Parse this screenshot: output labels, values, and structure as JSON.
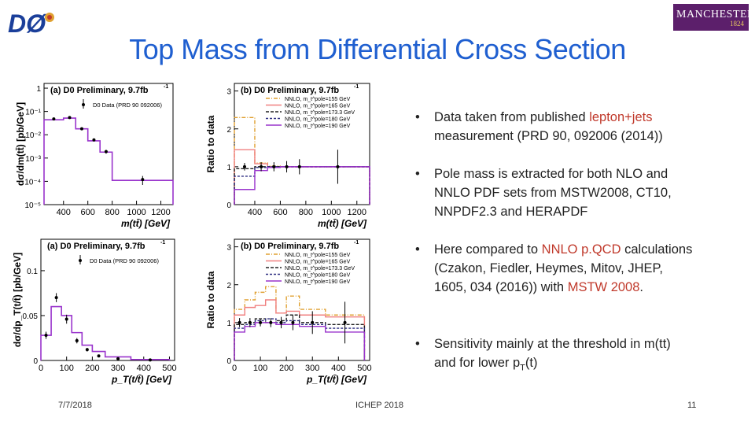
{
  "slide": {
    "title": "Top Mass from Differential Cross Section",
    "footer_date": "7/7/2018",
    "footer_conf": "ICHEP 2018",
    "page_number": "11"
  },
  "logos": {
    "d0": "DØ",
    "manchester_name": "MANCHESTER",
    "manchester_year": "1824"
  },
  "bullets": [
    {
      "parts": [
        "Data taken from published ",
        "lepton+jets",
        " measurement (PRD 90, 092006 (2014))"
      ]
    },
    {
      "parts": [
        "Pole mass is extracted for both NLO and NNLO PDF sets from MSTW2008, CT10, NNPDF2.3 and HERAPDF"
      ]
    },
    {
      "parts": [
        "Here compared to ",
        "NNLO p.QCD",
        " calculations (Czakon, Fiedler, Heymes, Mitov, JHEP, 1605, 034 (2016)) with ",
        "MSTW 2008",
        "."
      ]
    },
    {
      "parts": [
        "Sensitivity mainly at the threshold in m(tt) and for lower p",
        "T",
        "(t)"
      ]
    }
  ],
  "colors": {
    "title": "#1f5fd0",
    "highlight": "#c0392b",
    "purple": "#9933cc",
    "orange": "#e0a030",
    "pink": "#f08080",
    "navy": "#2c2c80"
  },
  "chart_data": [
    {
      "type": "bar",
      "id": "mtt-xsec",
      "title": "(a)  D0 Preliminary, 9.7fb",
      "title_sup": "-1",
      "xlabel": "m(tt̄) [GeV]",
      "ylabel": "dσ/dm(tt̄) [pb/GeV]",
      "log_y": true,
      "xlim": [
        240,
        1300
      ],
      "ylim": [
        1e-05,
        1.6
      ],
      "x_ticks": [
        "400",
        "600",
        "800",
        "1000",
        "1200"
      ],
      "y_ticks": [
        "10⁻⁵",
        "10⁻⁴",
        "10⁻³",
        "10⁻²",
        "10⁻¹",
        "1"
      ],
      "legend": "D0 Data (PRD 90 092006)",
      "edges": [
        240,
        400,
        500,
        600,
        700,
        800,
        1300
      ],
      "series": [
        {
          "name": "theory",
          "values": [
            0.044,
            0.052,
            0.018,
            0.0055,
            0.0018,
            0.00011
          ]
        },
        {
          "name": "data",
          "x": [
            320,
            450,
            550,
            650,
            750,
            1050
          ],
          "values": [
            0.048,
            0.055,
            0.018,
            0.006,
            0.0019,
            0.00012
          ],
          "errors": [
            0.006,
            0.006,
            0.002,
            0.0008,
            0.00035,
            5e-05
          ]
        }
      ]
    },
    {
      "type": "line",
      "id": "mtt-ratio",
      "title": "(b)  D0 Preliminary, 9.7fb",
      "title_sup": "-1",
      "xlabel": "m(tt̄) [GeV]",
      "ylabel": "Ratio to data",
      "xlim": [
        240,
        1300
      ],
      "ylim": [
        0,
        3.2
      ],
      "x_ticks": [
        "400",
        "600",
        "800",
        "1000",
        "1200"
      ],
      "y_ticks": [
        "0",
        "1",
        "2",
        "3"
      ],
      "legend": [
        "NNLO, m_t^pole=155 GeV",
        "NNLO, m_t^pole=165 GeV",
        "NNLO, m_t^pole=173.3 GeV",
        "NNLO, m_t^pole=180 GeV",
        "NNLO, m_t^pole=190 GeV"
      ],
      "edges": [
        240,
        400,
        500,
        600,
        700,
        800,
        1300
      ],
      "series": [
        {
          "name": "155 GeV",
          "values": [
            2.3,
            1.1,
            1.02,
            1.0,
            1.0,
            1.0
          ]
        },
        {
          "name": "165 GeV",
          "values": [
            1.45,
            1.08,
            1.0,
            1.0,
            1.0,
            1.0
          ]
        },
        {
          "name": "173.3 GeV",
          "values": [
            0.95,
            1.0,
            1.0,
            1.0,
            1.0,
            1.0
          ]
        },
        {
          "name": "180 GeV",
          "values": [
            0.75,
            0.98,
            1.0,
            1.0,
            1.0,
            1.0
          ]
        },
        {
          "name": "190 GeV",
          "values": [
            0.4,
            0.9,
            0.98,
            1.0,
            1.0,
            1.0
          ]
        },
        {
          "name": "data",
          "x": [
            320,
            450,
            550,
            650,
            750,
            1050
          ],
          "values": [
            1.0,
            1.0,
            1.0,
            1.0,
            1.0,
            1.0
          ],
          "errors": [
            0.1,
            0.12,
            0.12,
            0.15,
            0.2,
            0.45
          ]
        }
      ]
    },
    {
      "type": "bar",
      "id": "pt-xsec",
      "title": "(a)  D0 Preliminary, 9.7fb",
      "title_sup": "-1",
      "xlabel": "p_T(t/t̄) [GeV]",
      "ylabel": "dσ/dp_T(t/t̄) [pb/GeV]",
      "xlim": [
        0,
        520
      ],
      "ylim": [
        0,
        0.135
      ],
      "x_ticks": [
        "0",
        "100",
        "200",
        "300",
        "400",
        "500"
      ],
      "y_ticks": [
        "0",
        "0.05",
        "0.1"
      ],
      "legend": "D0 Data (PRD 90 092006)",
      "edges": [
        0,
        40,
        80,
        120,
        160,
        200,
        250,
        350,
        500
      ],
      "series": [
        {
          "name": "theory",
          "values": [
            0.028,
            0.06,
            0.05,
            0.031,
            0.017,
            0.01,
            0.004,
            0.001
          ]
        },
        {
          "name": "data",
          "x": [
            20,
            60,
            100,
            140,
            180,
            225,
            300,
            425
          ],
          "values": [
            0.028,
            0.07,
            0.046,
            0.022,
            0.012,
            0.005,
            0.002,
            0.0005
          ],
          "errors": [
            0.004,
            0.005,
            0.005,
            0.003,
            0.002,
            0.001,
            0.0008,
            0.0003
          ]
        }
      ]
    },
    {
      "type": "line",
      "id": "pt-ratio",
      "title": "(b)  D0 Preliminary, 9.7fb",
      "title_sup": "-1",
      "xlabel": "p_T(t/t̄) [GeV]",
      "ylabel": "Ratio to data",
      "xlim": [
        0,
        520
      ],
      "ylim": [
        0,
        3.2
      ],
      "x_ticks": [
        "0",
        "100",
        "200",
        "300",
        "400",
        "500"
      ],
      "y_ticks": [
        "0",
        "1",
        "2",
        "3"
      ],
      "legend": [
        "NNLO, m_t^pole=155 GeV",
        "NNLO, m_t^pole=165 GeV",
        "NNLO, m_t^pole=173.3 GeV",
        "NNLO, m_t^pole=180 GeV",
        "NNLO, m_t^pole=190 GeV"
      ],
      "edges": [
        0,
        40,
        80,
        120,
        160,
        200,
        250,
        350,
        500
      ],
      "series": [
        {
          "name": "155 GeV",
          "values": [
            1.35,
            1.6,
            1.8,
            1.95,
            1.25,
            1.7,
            1.35,
            1.2
          ]
        },
        {
          "name": "165 GeV",
          "values": [
            1.2,
            1.4,
            1.45,
            1.6,
            1.25,
            1.3,
            1.2,
            1.15
          ]
        },
        {
          "name": "173.3 GeV",
          "values": [
            0.95,
            1.0,
            1.1,
            1.0,
            1.05,
            1.2,
            1.0,
            0.95
          ]
        },
        {
          "name": "180 GeV",
          "values": [
            0.85,
            0.95,
            1.05,
            1.1,
            1.0,
            1.05,
            0.95,
            0.85
          ]
        },
        {
          "name": "190 GeV",
          "values": [
            0.75,
            0.9,
            1.0,
            1.0,
            0.95,
            0.95,
            0.9,
            0.75
          ]
        },
        {
          "name": "data",
          "x": [
            20,
            60,
            100,
            140,
            180,
            225,
            300,
            425
          ],
          "values": [
            1.0,
            1.0,
            1.0,
            1.0,
            1.0,
            1.0,
            1.0,
            1.0
          ],
          "errors": [
            0.12,
            0.12,
            0.1,
            0.12,
            0.15,
            0.2,
            0.3,
            0.55
          ]
        }
      ]
    }
  ]
}
